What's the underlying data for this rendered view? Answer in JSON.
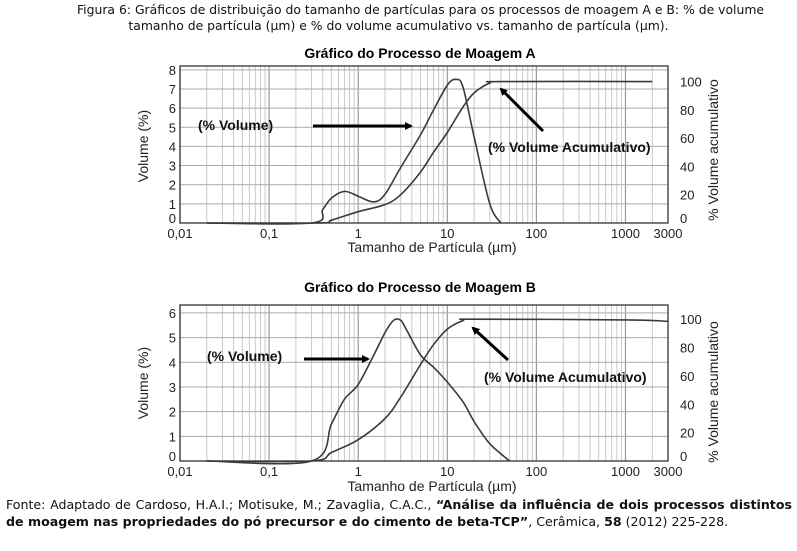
{
  "caption": {
    "line1": "Figura 6: Gráficos de distribuição do tamanho de partículas para os processos de moagem A e B: % de volume",
    "line2": "tamanho de partícula (µm) e % do volume acumulativo vs. tamanho de partícula (µm)."
  },
  "source": {
    "prefix": "Fonte: Adaptado de Cardoso, H.A.I.; Motisuke, M.; Zavaglia, C.A.C., ",
    "title": "“Análise da influência de dois processos distintos de moagem nas propriedades do pó precursor e do cimento de beta-TCP”",
    "journal": ", Cerâmica, ",
    "volume": "58",
    "rest": " (2012) 225-228."
  },
  "chart_data": [
    {
      "type": "line",
      "title": "Gráfico do Processo de Moagem A",
      "xlabel": "Tamanho de Partícula (µm)",
      "ylabel": "Volume (%)",
      "ylabel_right": "% Volume acumulativo",
      "xscale": "log",
      "xlim": [
        0.01,
        3000
      ],
      "ylim": [
        0,
        8.2
      ],
      "ylim_right": [
        0,
        111
      ],
      "x_ticks": [
        "0,01",
        "0,1",
        "1",
        "10",
        "100",
        "1000",
        "3000"
      ],
      "y_ticks": [
        "0",
        "1",
        "2",
        "3",
        "4",
        "5",
        "6",
        "7",
        "8"
      ],
      "y_ticks_right": [
        "0",
        "20",
        "40",
        "60",
        "80",
        "100"
      ],
      "grid": true,
      "annotations": {
        "volume": "(% Volume)",
        "cumulative": "(% Volume Acumulativo)"
      },
      "series": [
        {
          "axis": "left",
          "points": [
            [
              0.02,
              0
            ],
            [
              0.3,
              0
            ],
            [
              0.4,
              0.7
            ],
            [
              0.5,
              1.3
            ],
            [
              0.7,
              1.65
            ],
            [
              1,
              1.4
            ],
            [
              1.5,
              1.1
            ],
            [
              2,
              1.5
            ],
            [
              3,
              2.9
            ],
            [
              5,
              4.6
            ],
            [
              7,
              5.9
            ],
            [
              10,
              7.2
            ],
            [
              12.5,
              7.5
            ],
            [
              15,
              7.1
            ],
            [
              20,
              4.5
            ],
            [
              30,
              1
            ],
            [
              40,
              0
            ]
          ]
        },
        {
          "axis": "right",
          "points": [
            [
              0.02,
              0
            ],
            [
              0.35,
              0
            ],
            [
              0.5,
              2
            ],
            [
              1,
              8
            ],
            [
              2,
              13
            ],
            [
              3,
              20
            ],
            [
              5,
              36
            ],
            [
              7,
              50
            ],
            [
              10,
              64
            ],
            [
              15,
              82
            ],
            [
              20,
              92
            ],
            [
              30,
              99
            ],
            [
              40,
              100
            ],
            [
              2000,
              100
            ]
          ]
        }
      ]
    },
    {
      "type": "line",
      "title": "Gráfico do Processo de Moagem B",
      "xlabel": "Tamanho de Partícula (µm)",
      "ylabel": "Volume (%)",
      "ylabel_right": "% Volume acumulativo",
      "xscale": "log",
      "xlim": [
        0.01,
        3000
      ],
      "ylim": [
        0,
        6.32
      ],
      "ylim_right": [
        0,
        110
      ],
      "x_ticks": [
        "0,01",
        "0,1",
        "1",
        "10",
        "100",
        "1000",
        "3000"
      ],
      "y_ticks": [
        "0",
        "1",
        "2",
        "3",
        "4",
        "5",
        "6"
      ],
      "y_ticks_right": [
        "0",
        "20",
        "40",
        "60",
        "80",
        "100"
      ],
      "grid": true,
      "annotations": {
        "volume": "(% Volume)",
        "cumulative": "(% Volume Acumulativo)"
      },
      "series": [
        {
          "axis": "left",
          "points": [
            [
              0.02,
              0
            ],
            [
              0.3,
              0
            ],
            [
              0.5,
              1.5
            ],
            [
              0.7,
              2.5
            ],
            [
              1,
              3.1
            ],
            [
              1.5,
              4.3
            ],
            [
              2,
              5.2
            ],
            [
              2.5,
              5.7
            ],
            [
              3,
              5.7
            ],
            [
              3.5,
              5.3
            ],
            [
              5,
              4.3
            ],
            [
              7,
              3.8
            ],
            [
              10,
              3.2
            ],
            [
              15,
              2.4
            ],
            [
              20,
              1.6
            ],
            [
              30,
              0.7
            ],
            [
              50,
              0
            ]
          ]
        },
        {
          "axis": "right",
          "points": [
            [
              0.02,
              0
            ],
            [
              0.3,
              0
            ],
            [
              0.5,
              6
            ],
            [
              1,
              15
            ],
            [
              2,
              30
            ],
            [
              3,
              45
            ],
            [
              5,
              68
            ],
            [
              7,
              82
            ],
            [
              10,
              93
            ],
            [
              15,
              99
            ],
            [
              20,
              100
            ],
            [
              1000,
              99.5
            ],
            [
              3000,
              98.5
            ]
          ]
        }
      ]
    }
  ]
}
